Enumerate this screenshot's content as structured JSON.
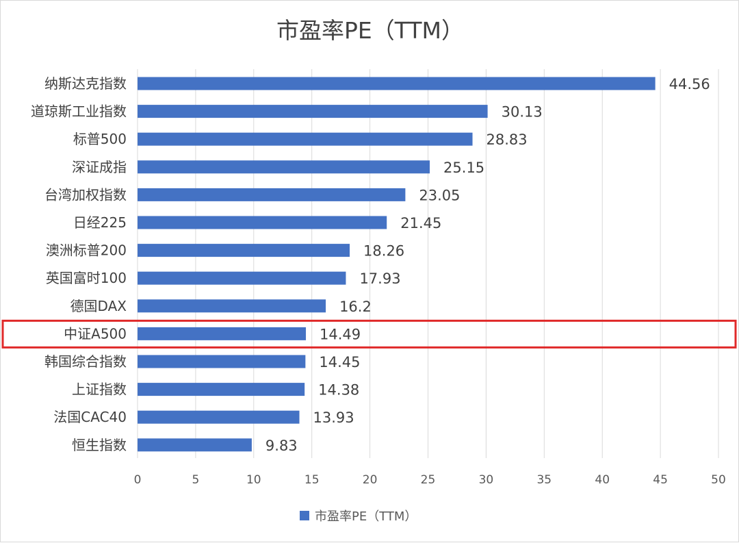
{
  "chart_data": {
    "type": "bar",
    "orientation": "horizontal",
    "title": "市盈率PE（TTM）",
    "categories": [
      "纳斯达克指数",
      "道琼斯工业指数",
      "标普500",
      "深证成指",
      "台湾加权指数",
      "日经225",
      "澳洲标普200",
      "英国富时100",
      "德国DAX",
      "中证A500",
      "韩国综合指数",
      "上证指数",
      "法国CAC40",
      "恒生指数"
    ],
    "values": [
      44.56,
      30.13,
      28.83,
      25.15,
      23.05,
      21.45,
      18.26,
      17.93,
      16.2,
      14.49,
      14.45,
      14.38,
      13.93,
      9.83
    ],
    "value_labels": [
      "44.56",
      "30.13",
      "28.83",
      "25.15",
      "23.05",
      "21.45",
      "18.26",
      "17.93",
      "16.2",
      "14.49",
      "14.45",
      "14.38",
      "13.93",
      "9.83"
    ],
    "xlim": [
      0,
      50
    ],
    "x_ticks": [
      "0",
      "5",
      "10",
      "15",
      "20",
      "25",
      "30",
      "35",
      "40",
      "45",
      "50"
    ],
    "xlabel": "",
    "ylabel": "",
    "grid": true,
    "legend": {
      "position": "bottom",
      "entries": [
        {
          "name": "市盈率PE（TTM）",
          "color": "#4472c4"
        }
      ]
    },
    "highlight_category": "中证A500",
    "colors": {
      "bar": "#4472c4",
      "highlight": "#e02a2a"
    }
  }
}
